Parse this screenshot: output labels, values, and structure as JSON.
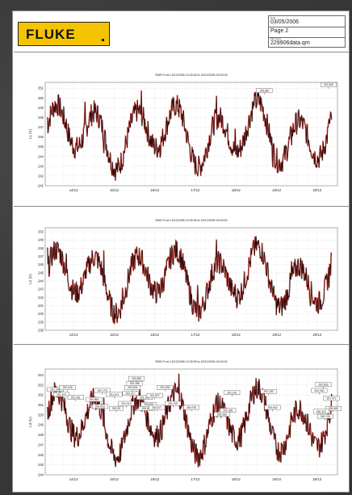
{
  "header": {
    "logo_text": "FLUKE",
    "date_label": "Date",
    "date_value": "03/05/2006",
    "page_value": "Page 2",
    "file_label": "File name",
    "file_value": "229906data.qm"
  },
  "colors": {
    "trace_dark": "#2a0a0a",
    "trace_red": "#c0281e",
    "logo_yellow": "#f5c400",
    "grid": "#c8c8c8"
  },
  "chart_data": [
    {
      "type": "line",
      "title": "RMS From 13/12/2006 10:30:28 to 20/12/2006 15:00:00",
      "ylabel": "L1 (V)",
      "ylim": [
        241,
        251.6
      ],
      "yticks": [
        "241",
        "242",
        "243",
        "244",
        "245",
        "246",
        "247",
        "248",
        "249",
        "250",
        "251"
      ],
      "x": [
        "14/12",
        "15/12",
        "16/12",
        "17/12",
        "18/12",
        "19/12",
        "20/12"
      ],
      "annotations": [
        {
          "text": "249.887",
          "x": 5.2,
          "y": 250.6
        },
        {
          "text": "251.840",
          "x": 6.78,
          "y": 251.2
        }
      ]
    },
    {
      "type": "line",
      "title": "RMS From 13/12/2006 10:30:28 to 20/12/2006 15:00:00",
      "ylabel": "L2 (V)",
      "ylim": [
        238,
        250.5
      ],
      "yticks": [
        "238",
        "239",
        "240",
        "241",
        "242",
        "243",
        "244",
        "245",
        "246",
        "247",
        "248",
        "249",
        "250"
      ],
      "x": [
        "14/12",
        "15/12",
        "16/12",
        "17/12",
        "18/12",
        "19/12",
        "20/12"
      ],
      "annotations": []
    },
    {
      "type": "line",
      "title": "RMS From 13/12/2006 10:30:28 to 20/12/2006 15:00:00",
      "ylabel": "L3 (V)",
      "ylim": [
        244,
        254.6
      ],
      "yticks": [
        "244",
        "245",
        "246",
        "247",
        "248",
        "249",
        "250",
        "251",
        "252",
        "253",
        "254"
      ],
      "x": [
        "14/12",
        "15/12",
        "16/12",
        "17/12",
        "18/12",
        "19/12",
        "20/12"
      ],
      "annotations": [
        {
          "text": "251.308",
          "x": 0.05,
          "y": 252.4
        },
        {
          "text": "252.026",
          "x": 0.35,
          "y": 252.6
        },
        {
          "text": "251.873",
          "x": 0.2,
          "y": 251.9
        },
        {
          "text": "251.431",
          "x": 0.55,
          "y": 251.6
        },
        {
          "text": "252.178",
          "x": 1.2,
          "y": 252.3
        },
        {
          "text": "251.871",
          "x": 1.5,
          "y": 251.9
        },
        {
          "text": "250.863",
          "x": 1.0,
          "y": 251.4
        },
        {
          "text": "250.605",
          "x": 1.15,
          "y": 250.7
        },
        {
          "text": "250.33",
          "x": 1.55,
          "y": 250.5
        },
        {
          "text": "253.890",
          "x": 2.05,
          "y": 253.5
        },
        {
          "text": "253.286",
          "x": 2.0,
          "y": 253.0
        },
        {
          "text": "252.908",
          "x": 1.95,
          "y": 252.6
        },
        {
          "text": "252.017",
          "x": 1.9,
          "y": 252.0
        },
        {
          "text": "251.373",
          "x": 2.25,
          "y": 251.6
        },
        {
          "text": "251.013",
          "x": 1.8,
          "y": 251.0
        },
        {
          "text": "250.870",
          "x": 2.35,
          "y": 250.9
        },
        {
          "text": "250.823",
          "x": 2.3,
          "y": 250.5
        },
        {
          "text": "250.677",
          "x": 2.55,
          "y": 250.6
        },
        {
          "text": "252.635",
          "x": 2.75,
          "y": 252.6
        },
        {
          "text": "251.827",
          "x": 2.5,
          "y": 251.8
        },
        {
          "text": "251.001",
          "x": 2.95,
          "y": 251.0
        },
        {
          "text": "250.978",
          "x": 3.4,
          "y": 250.6
        },
        {
          "text": "252.102",
          "x": 4.4,
          "y": 252.1
        },
        {
          "text": "250.355",
          "x": 4.3,
          "y": 250.3
        },
        {
          "text": "250.058",
          "x": 4.15,
          "y": 249.9
        },
        {
          "text": "252.183",
          "x": 5.3,
          "y": 252.2
        },
        {
          "text": "250.602",
          "x": 5.4,
          "y": 250.6
        },
        {
          "text": "252.833",
          "x": 6.65,
          "y": 252.9
        },
        {
          "text": "252.262",
          "x": 6.55,
          "y": 252.3
        },
        {
          "text": "251.473",
          "x": 6.85,
          "y": 251.5
        },
        {
          "text": "250.480",
          "x": 6.9,
          "y": 250.5
        },
        {
          "text": "250.322",
          "x": 6.6,
          "y": 250.2
        },
        {
          "text": "249.745",
          "x": 6.7,
          "y": 249.7
        }
      ]
    }
  ]
}
